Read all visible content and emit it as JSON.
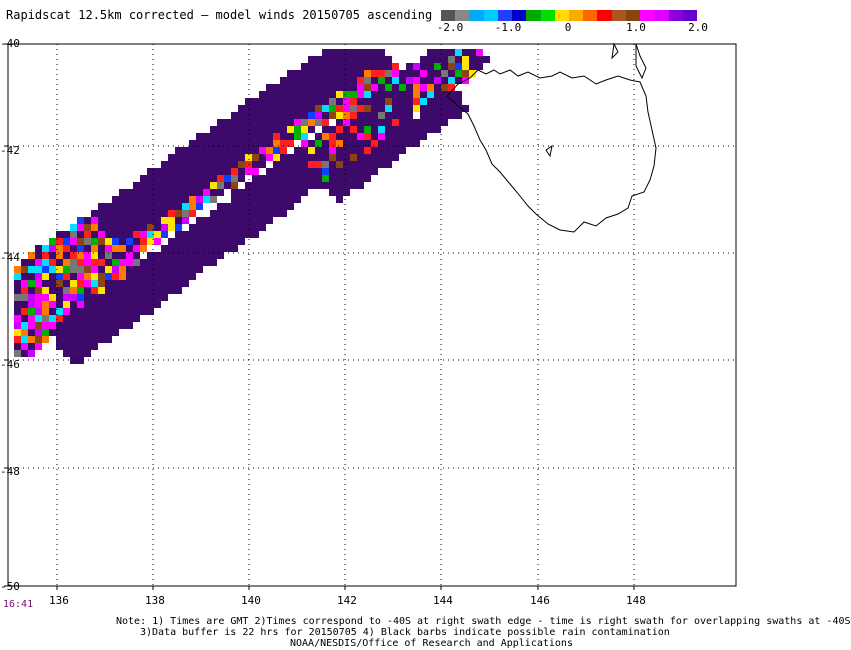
{
  "title": "Rapidscat 12.5km corrected – model winds 20150705 ascending",
  "colorbar": {
    "labels": [
      "-2.0",
      "-1.0",
      "0",
      "1.0",
      "2.0"
    ],
    "colors": [
      "#555555",
      "#888888",
      "#00aaff",
      "#00ccff",
      "#2040ff",
      "#0000cc",
      "#00aa00",
      "#00dd00",
      "#ffdd00",
      "#ffaa00",
      "#ff6600",
      "#ff0000",
      "#aa5522",
      "#884411",
      "#ff00ff",
      "#dd00ff",
      "#8800dd",
      "#6600cc"
    ]
  },
  "axes": {
    "y_ticks": [
      "-40",
      "-42",
      "-44",
      "-46",
      "-48",
      "-50"
    ],
    "x_ticks": [
      "136",
      "138",
      "140",
      "142",
      "144",
      "146",
      "148"
    ]
  },
  "time_label": "16:41",
  "notes": [
    "Note: 1) Times are GMT 2)Times correspond to -40S at right swath edge - time is right swath for overlapping swaths at -40S",
    "3)Data buffer is 22 hrs for 20150705 4) Black barbs indicate possible rain contamination",
    "NOAA/NESDIS/Office of Research and Applications"
  ],
  "map_colors": {
    "purple": "#3d0a6b",
    "magenta": "#ff00ff",
    "violet": "#cc00ff",
    "red": "#ff1f1f",
    "orange": "#ff7a00",
    "yellow": "#ffe600",
    "green": "#00b000",
    "cyan": "#00e0ff",
    "blue": "#1040ff",
    "brown": "#8b4513",
    "gray": "#777777",
    "grid": "#000000",
    "coast": "#000000"
  }
}
